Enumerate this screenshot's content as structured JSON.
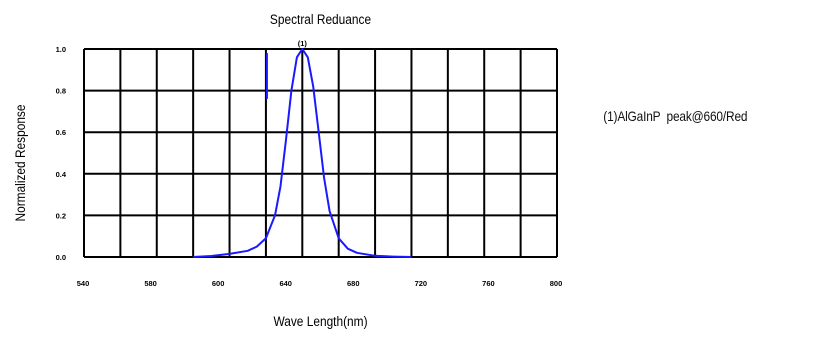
{
  "chart_data": {
    "type": "line",
    "title": "Spectral  Reduance",
    "xlabel": "Wave Length(nm)",
    "ylabel": "Normalized  Response",
    "xlim": [
      540,
      800
    ],
    "ylim": [
      0,
      1.0
    ],
    "x_ticks": [
      "540",
      "580",
      "600",
      "640",
      "680",
      "720",
      "760",
      "800"
    ],
    "y_ticks": [
      "0.0",
      "0.2",
      "0.4",
      "0.6",
      "0.8",
      "1.0"
    ],
    "grid": true,
    "series": [
      {
        "name": "(1)",
        "color": "#1a1aff",
        "x": [
          600,
          610,
          620,
          630,
          635,
          640,
          645,
          648,
          651,
          654,
          657,
          660,
          663,
          666,
          669,
          672,
          675,
          680,
          685,
          690,
          700,
          710,
          720
        ],
        "y": [
          0.0,
          0.005,
          0.015,
          0.03,
          0.05,
          0.09,
          0.2,
          0.34,
          0.56,
          0.8,
          0.96,
          1.0,
          0.96,
          0.82,
          0.6,
          0.38,
          0.22,
          0.09,
          0.04,
          0.02,
          0.006,
          0.002,
          0.0
        ]
      }
    ],
    "peak_label": "(1)",
    "legend": [
      "(1)AlGaInP  peak@660/Red"
    ],
    "legend_position": "right"
  }
}
